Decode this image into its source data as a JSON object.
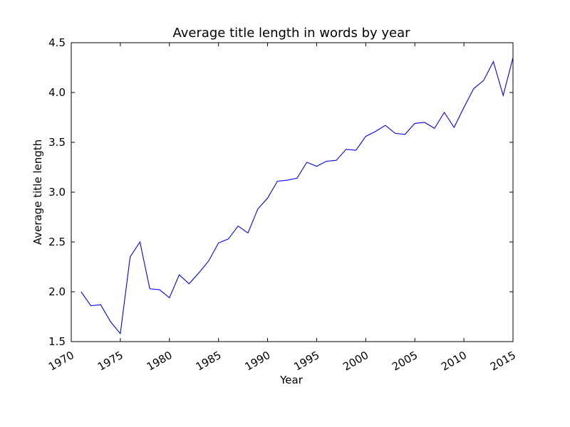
{
  "chart_data": {
    "type": "line",
    "title": "Average title length in words by year",
    "xlabel": "Year",
    "ylabel": "Average title length",
    "xlim": [
      1970,
      2015
    ],
    "ylim": [
      1.5,
      4.5
    ],
    "grid": false,
    "legend": "none",
    "xticks": [
      1970,
      1975,
      1980,
      1985,
      1990,
      1995,
      2000,
      2005,
      2010,
      2015
    ],
    "xtick_labels": [
      "1970",
      "1975",
      "1980",
      "1985",
      "1990",
      "1995",
      "2000",
      "2005",
      "2010",
      "2015"
    ],
    "yticks": [
      1.5,
      2.0,
      2.5,
      3.0,
      3.5,
      4.0,
      4.5
    ],
    "ytick_labels": [
      "1.5",
      "2.0",
      "2.5",
      "3.0",
      "3.5",
      "4.0",
      "4.5"
    ],
    "series": [
      {
        "color": "#0000ff",
        "x": [
          1971,
          1972,
          1973,
          1974,
          1975,
          1976,
          1977,
          1978,
          1979,
          1980,
          1981,
          1982,
          1983,
          1984,
          1985,
          1986,
          1987,
          1988,
          1989,
          1990,
          1991,
          1992,
          1993,
          1994,
          1995,
          1996,
          1997,
          1998,
          1999,
          2000,
          2001,
          2002,
          2003,
          2004,
          2005,
          2006,
          2007,
          2008,
          2009,
          2010,
          2011,
          2012,
          2013,
          2014,
          2015
        ],
        "y": [
          2.0,
          1.86,
          1.87,
          1.7,
          1.58,
          2.35,
          2.5,
          2.03,
          2.02,
          1.94,
          2.17,
          2.08,
          2.19,
          2.31,
          2.49,
          2.53,
          2.66,
          2.59,
          2.83,
          2.94,
          3.11,
          3.12,
          3.14,
          3.3,
          3.26,
          3.31,
          3.32,
          3.43,
          3.42,
          3.56,
          3.61,
          3.67,
          3.59,
          3.58,
          3.69,
          3.7,
          3.64,
          3.8,
          3.65,
          3.85,
          4.04,
          4.12,
          4.31,
          3.97,
          4.35
        ]
      }
    ]
  }
}
